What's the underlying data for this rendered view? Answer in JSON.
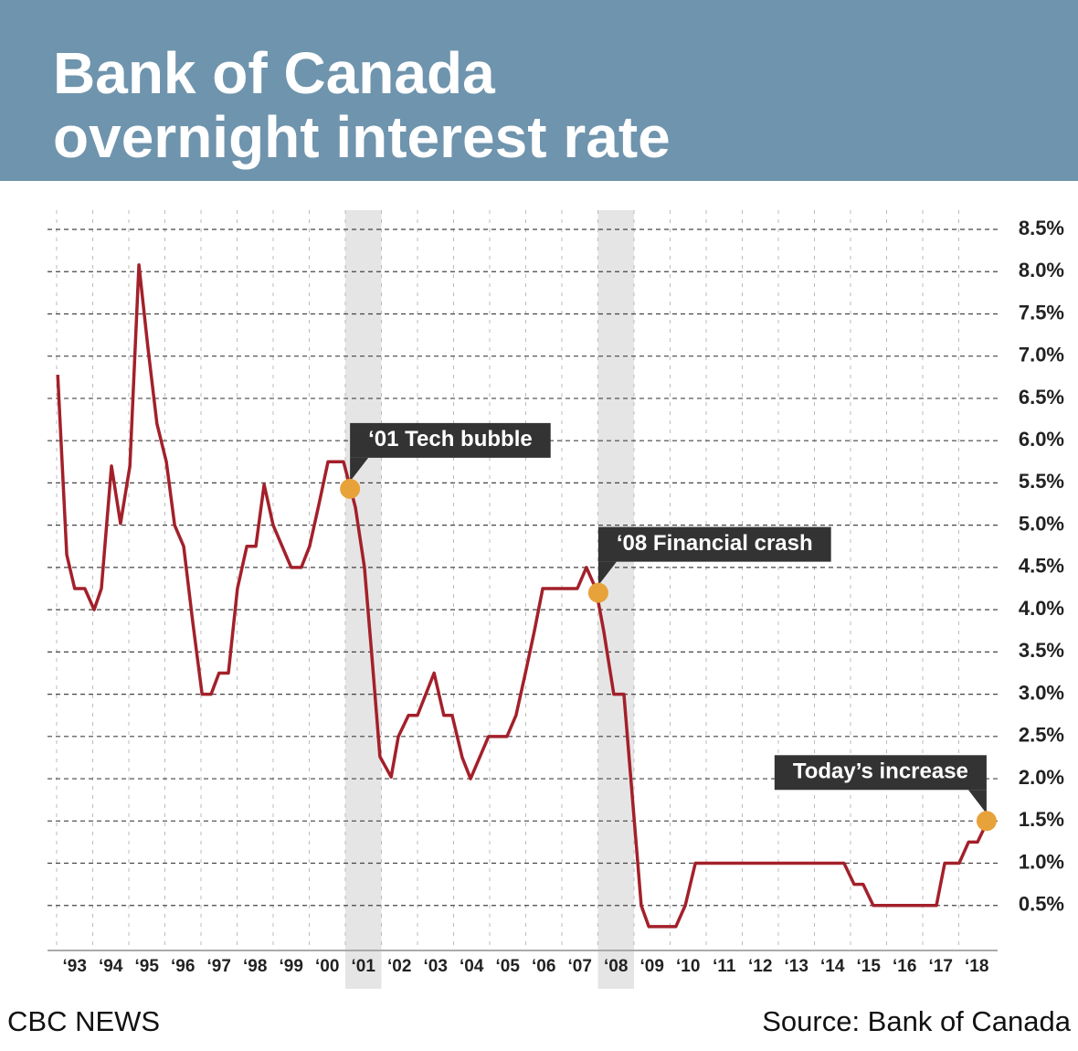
{
  "chart_data": {
    "type": "line",
    "title_lines": [
      "Bank of Canada",
      "overnight interest rate"
    ],
    "source": "Source: Bank of Canada",
    "brand": "CBC NEWS",
    "xlim": [
      1993,
      2019
    ],
    "ylim": [
      0,
      8.5
    ],
    "yticks": [
      {
        "value": 0.5,
        "label": "0.5%"
      },
      {
        "value": 1,
        "label": "1.0%"
      },
      {
        "value": 1.5,
        "label": "1.5%"
      },
      {
        "value": 2,
        "label": "2.0%"
      },
      {
        "value": 2.5,
        "label": "2.5%"
      },
      {
        "value": 3,
        "label": "3.0%"
      },
      {
        "value": 3.5,
        "label": "3.5%"
      },
      {
        "value": 4,
        "label": "4.0%"
      },
      {
        "value": 4.5,
        "label": "4.5%"
      },
      {
        "value": 5,
        "label": "5.0%"
      },
      {
        "value": 5.5,
        "label": "5.5%"
      },
      {
        "value": 6,
        "label": "6.0%"
      },
      {
        "value": 6.5,
        "label": "6.5%"
      },
      {
        "value": 7,
        "label": "7.0%"
      },
      {
        "value": 7.5,
        "label": "7.5%"
      },
      {
        "value": 8,
        "label": "8.0%"
      },
      {
        "value": 8.5,
        "label": "8.5%"
      }
    ],
    "xticks": [
      {
        "value": 1993.5,
        "label": "‘93"
      },
      {
        "value": 1994.5,
        "label": "‘94"
      },
      {
        "value": 1995.5,
        "label": "‘95"
      },
      {
        "value": 1996.5,
        "label": "‘96"
      },
      {
        "value": 1997.5,
        "label": "‘97"
      },
      {
        "value": 1998.5,
        "label": "‘98"
      },
      {
        "value": 1999.5,
        "label": "‘99"
      },
      {
        "value": 2000.5,
        "label": "‘00"
      },
      {
        "value": 2001.5,
        "label": "‘01"
      },
      {
        "value": 2002.5,
        "label": "‘02"
      },
      {
        "value": 2003.5,
        "label": "‘03"
      },
      {
        "value": 2004.5,
        "label": "‘04"
      },
      {
        "value": 2005.5,
        "label": "‘05"
      },
      {
        "value": 2006.5,
        "label": "‘06"
      },
      {
        "value": 2007.5,
        "label": "‘07"
      },
      {
        "value": 2008.5,
        "label": "‘08"
      },
      {
        "value": 2009.5,
        "label": "‘09"
      },
      {
        "value": 2010.5,
        "label": "‘10"
      },
      {
        "value": 2011.5,
        "label": "‘11"
      },
      {
        "value": 2012.5,
        "label": "‘12"
      },
      {
        "value": 2013.5,
        "label": "‘13"
      },
      {
        "value": 2014.5,
        "label": "‘14"
      },
      {
        "value": 2015.5,
        "label": "‘15"
      },
      {
        "value": 2016.5,
        "label": "‘16"
      },
      {
        "value": 2017.5,
        "label": "‘17"
      },
      {
        "value": 2018.5,
        "label": "‘18"
      }
    ],
    "grid": true,
    "shaded_ranges": [
      [
        2001,
        2002
      ],
      [
        2008,
        2009
      ]
    ],
    "series": [
      {
        "color": "#a3202a",
        "x": [
          1993.03,
          1993.28,
          1993.5,
          1993.78,
          1994.04,
          1994.24,
          1994.52,
          1994.77,
          1995.03,
          1995.28,
          1995.53,
          1995.78,
          1996.04,
          1996.27,
          1996.52,
          1996.77,
          1997.03,
          1997.28,
          1997.5,
          1997.76,
          1998.01,
          1998.27,
          1998.52,
          1998.75,
          1999.0,
          1999.25,
          1999.5,
          1999.78,
          2000.01,
          2000.27,
          2000.52,
          2000.95,
          2001.28,
          2001.53,
          2001.73,
          2001.96,
          2002.27,
          2002.47,
          2002.75,
          2003.0,
          2003.23,
          2003.46,
          2003.73,
          2003.96,
          2004.24,
          2004.47,
          2004.72,
          2004.97,
          2005.48,
          2005.73,
          2005.99,
          2006.24,
          2006.47,
          2006.72,
          2007.43,
          2007.68,
          2007.94,
          2008.16,
          2008.44,
          2008.72,
          2008.97,
          2009.2,
          2009.41,
          2010.16,
          2010.42,
          2010.7,
          2014.82,
          2015.1,
          2015.35,
          2015.63,
          2017.38,
          2017.61,
          2018.01,
          2018.27,
          2018.52,
          2018.8
        ],
        "values": [
          6.78,
          4.65,
          4.25,
          4.25,
          4.0,
          4.25,
          5.7,
          5.02,
          5.7,
          8.08,
          7.1,
          6.2,
          5.75,
          5.0,
          4.75,
          3.86,
          3.0,
          3.0,
          3.25,
          3.25,
          4.25,
          4.75,
          4.75,
          5.48,
          5.0,
          4.75,
          4.5,
          4.5,
          4.75,
          5.25,
          5.75,
          5.75,
          5.21,
          4.5,
          3.48,
          2.26,
          2.02,
          2.5,
          2.75,
          2.75,
          3.0,
          3.25,
          2.75,
          2.75,
          2.25,
          2.0,
          2.25,
          2.5,
          2.5,
          2.75,
          3.25,
          3.75,
          4.25,
          4.25,
          4.25,
          4.5,
          4.25,
          3.75,
          3.0,
          3.0,
          1.7,
          0.5,
          0.25,
          0.25,
          0.5,
          1.0,
          1.0,
          0.75,
          0.75,
          0.5,
          0.5,
          1.0,
          1.0,
          1.25,
          1.25,
          1.5
        ]
      }
    ],
    "annotations": [
      {
        "text": "‘01 Tech bubble",
        "x": 2001.13,
        "y": 5.43
      },
      {
        "text": "‘08 Financial crash",
        "x": 2008.01,
        "y": 4.2
      },
      {
        "text": "Today’s increase",
        "x": 2018.77,
        "y": 1.5
      }
    ]
  }
}
